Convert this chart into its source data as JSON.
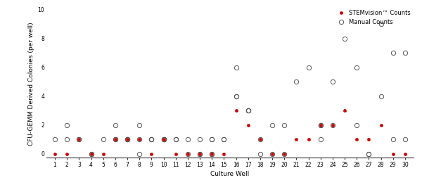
{
  "stemvision_counts": {
    "1": [
      0
    ],
    "2": [
      0
    ],
    "3": [
      1
    ],
    "4": [
      0
    ],
    "5": [
      0
    ],
    "6": [
      1
    ],
    "7": [
      1
    ],
    "8": [
      1
    ],
    "9": [
      0
    ],
    "10": [
      1
    ],
    "11": [
      0
    ],
    "12": [
      0
    ],
    "13": [
      0
    ],
    "14": [
      0
    ],
    "15": [
      0
    ],
    "16": [
      3
    ],
    "17": [
      2
    ],
    "18": [
      1
    ],
    "19": [
      0
    ],
    "20": [
      0
    ],
    "21": [
      1
    ],
    "22": [
      1
    ],
    "23": [
      2
    ],
    "24": [
      2
    ],
    "25": [
      3
    ],
    "26": [
      1
    ],
    "27": [
      1
    ],
    "28": [
      2
    ],
    "29": [
      0
    ],
    "30": [
      0
    ]
  },
  "manual_counts": {
    "1": [
      1
    ],
    "2": [
      1,
      2
    ],
    "3": [
      1,
      1
    ],
    "4": [
      0,
      0
    ],
    "5": [
      1
    ],
    "6": [
      1,
      1,
      2
    ],
    "7": [
      1,
      1,
      1
    ],
    "8": [
      1,
      2,
      0
    ],
    "9": [
      1,
      1,
      1
    ],
    "10": [
      1,
      1,
      1,
      1
    ],
    "11": [
      1,
      1
    ],
    "12": [
      1,
      0
    ],
    "13": [
      1,
      0,
      0
    ],
    "14": [
      1,
      1,
      0,
      0
    ],
    "15": [
      1,
      1
    ],
    "16": [
      4,
      4,
      6
    ],
    "17": [
      3,
      3,
      3
    ],
    "18": [
      1,
      0
    ],
    "19": [
      2,
      0
    ],
    "20": [
      2,
      0
    ],
    "21": [
      5
    ],
    "22": [
      6
    ],
    "23": [
      2,
      2,
      1
    ],
    "24": [
      5,
      2
    ],
    "25": [
      8
    ],
    "26": [
      6,
      2
    ],
    "27": [
      0,
      0
    ],
    "28": [
      9,
      4
    ],
    "29": [
      7,
      1
    ],
    "30": [
      7,
      1
    ]
  },
  "ylim": [
    0,
    10
  ],
  "xlabel": "Culture Well",
  "ylabel": "CFU-GEMM Derived Colonies (per well)",
  "stem_label": "STEMvision™ Counts",
  "manual_label": "Manual Counts",
  "stem_color": "#cc0000",
  "manual_color": "#555555",
  "bg_color": "#ffffff",
  "yticks": [
    0,
    2,
    4,
    6,
    8,
    10
  ],
  "xticks": [
    1,
    2,
    3,
    4,
    5,
    6,
    7,
    8,
    9,
    10,
    11,
    12,
    13,
    14,
    15,
    16,
    17,
    18,
    19,
    20,
    21,
    22,
    23,
    24,
    25,
    26,
    27,
    28,
    29,
    30
  ],
  "tick_fontsize": 5.5,
  "label_fontsize": 6.5,
  "legend_fontsize": 6.0,
  "marker_size_stem": 3.0,
  "marker_size_manual": 4.5
}
